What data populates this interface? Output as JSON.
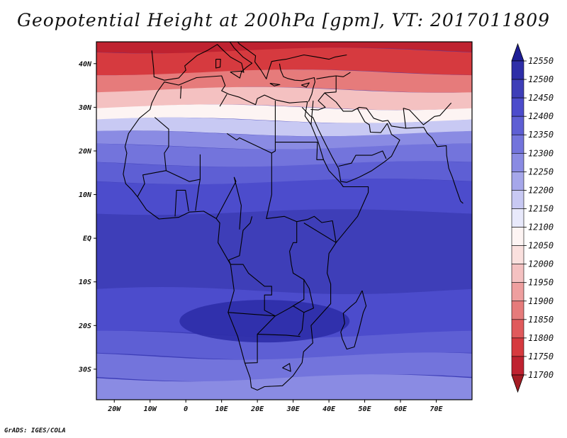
{
  "title": "Geopotential Height at 200hPa [gpm], VT: 2017011809",
  "credit": "GrADS: IGES/COLA",
  "map": {
    "lon_range": [
      -25,
      80
    ],
    "lat_range": [
      -37,
      45
    ],
    "lat_ticks": [
      {
        "lat": 40,
        "label": "40N"
      },
      {
        "lat": 30,
        "label": "30N"
      },
      {
        "lat": 20,
        "label": "20N"
      },
      {
        "lat": 10,
        "label": "10N"
      },
      {
        "lat": 0,
        "label": "EQ"
      },
      {
        "lat": -10,
        "label": "10S"
      },
      {
        "lat": -20,
        "label": "20S"
      },
      {
        "lat": -30,
        "label": "30S"
      }
    ],
    "lon_ticks": [
      {
        "lon": -20,
        "label": "20W"
      },
      {
        "lon": -10,
        "label": "10W"
      },
      {
        "lon": 0,
        "label": "0"
      },
      {
        "lon": 10,
        "label": "10E"
      },
      {
        "lon": 20,
        "label": "20E"
      },
      {
        "lon": 30,
        "label": "30E"
      },
      {
        "lon": 40,
        "label": "40E"
      },
      {
        "lon": 50,
        "label": "50E"
      },
      {
        "lon": 60,
        "label": "60E"
      },
      {
        "lon": 70,
        "label": "70E"
      }
    ]
  },
  "colorbar": {
    "levels": [
      11700,
      11750,
      11800,
      11850,
      11900,
      11950,
      12000,
      12050,
      12100,
      12150,
      12200,
      12250,
      12300,
      12350,
      12400,
      12450,
      12500,
      12550
    ],
    "labels": [
      "11700",
      "11750",
      "11800",
      "11850",
      "11900",
      "11950",
      "12000",
      "12050",
      "12100",
      "12150",
      "12200",
      "12250",
      "12300",
      "12350",
      "12400",
      "12450",
      "12500",
      "12550"
    ],
    "colors": [
      "#a51c24",
      "#bf2230",
      "#d63a3f",
      "#e05a5c",
      "#e67b7b",
      "#ee9f9f",
      "#f4c1c1",
      "#fae0de",
      "#fdf4f3",
      "#e8e9fb",
      "#c8c9f3",
      "#a6a7ea",
      "#8a8be3",
      "#7374dc",
      "#5e5fd4",
      "#4c4ccc",
      "#3e3eb8",
      "#2e2ea8",
      "#1e1e96"
    ]
  },
  "field_bands": [
    {
      "lat": 43,
      "value": 11700
    },
    {
      "lat": 38,
      "value": 11750
    },
    {
      "lat": 34,
      "value": 11850
    },
    {
      "lat": 30,
      "value": 11950
    },
    {
      "lat": 27,
      "value": 12050
    },
    {
      "lat": 24,
      "value": 12150
    },
    {
      "lat": 21,
      "value": 12250
    },
    {
      "lat": 17,
      "value": 12300
    },
    {
      "lat": 13,
      "value": 12350
    },
    {
      "lat": 8,
      "value": 12400
    },
    {
      "lat": -12,
      "value": 12450
    },
    {
      "lat": -22,
      "value": 12400
    },
    {
      "lat": -27,
      "value": 12350
    },
    {
      "lat": -32,
      "value": 12300
    },
    {
      "lat": -36,
      "value": 12250
    }
  ]
}
